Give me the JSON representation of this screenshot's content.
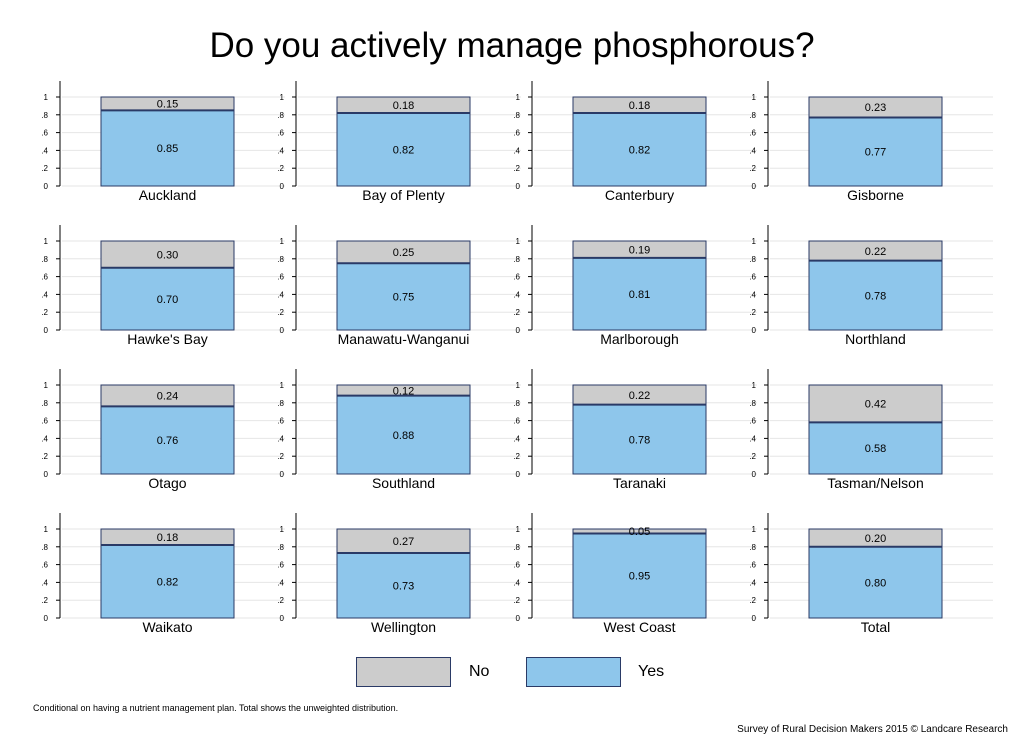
{
  "title": "Do you actively manage phosphorous?",
  "note": "Conditional on having a nutrient management plan. Total shows the unweighted distribution.",
  "source": "Survey of Rural Decision Makers 2015 © Landcare Research",
  "colors": {
    "yes": "#8ec6eb",
    "no": "#cccccc",
    "border": "#2a3a66",
    "grid": "#e6e6e6"
  },
  "legend": [
    {
      "key": "no",
      "label": "No"
    },
    {
      "key": "yes",
      "label": "Yes"
    }
  ],
  "chart_data": {
    "type": "bar",
    "stacked": true,
    "ylim": [
      0,
      1
    ],
    "yticks": [
      "0",
      ".2",
      ".4",
      ".6",
      ".8",
      "1"
    ],
    "grid": true,
    "legend_position": "bottom",
    "panels": [
      {
        "category": "Auckland",
        "yes": 0.85,
        "no": 0.15,
        "yes_label": "0.85",
        "no_label": "0.15"
      },
      {
        "category": "Bay of Plenty",
        "yes": 0.82,
        "no": 0.18,
        "yes_label": "0.82",
        "no_label": "0.18"
      },
      {
        "category": "Canterbury",
        "yes": 0.82,
        "no": 0.18,
        "yes_label": "0.82",
        "no_label": "0.18"
      },
      {
        "category": "Gisborne",
        "yes": 0.77,
        "no": 0.23,
        "yes_label": "0.77",
        "no_label": "0.23"
      },
      {
        "category": "Hawke's Bay",
        "yes": 0.7,
        "no": 0.3,
        "yes_label": "0.70",
        "no_label": "0.30"
      },
      {
        "category": "Manawatu-Wanganui",
        "yes": 0.75,
        "no": 0.25,
        "yes_label": "0.75",
        "no_label": "0.25"
      },
      {
        "category": "Marlborough",
        "yes": 0.81,
        "no": 0.19,
        "yes_label": "0.81",
        "no_label": "0.19"
      },
      {
        "category": "Northland",
        "yes": 0.78,
        "no": 0.22,
        "yes_label": "0.78",
        "no_label": "0.22"
      },
      {
        "category": "Otago",
        "yes": 0.76,
        "no": 0.24,
        "yes_label": "0.76",
        "no_label": "0.24"
      },
      {
        "category": "Southland",
        "yes": 0.88,
        "no": 0.12,
        "yes_label": "0.88",
        "no_label": "0.12"
      },
      {
        "category": "Taranaki",
        "yes": 0.78,
        "no": 0.22,
        "yes_label": "0.78",
        "no_label": "0.22"
      },
      {
        "category": "Tasman/Nelson",
        "yes": 0.58,
        "no": 0.42,
        "yes_label": "0.58",
        "no_label": "0.42"
      },
      {
        "category": "Waikato",
        "yes": 0.82,
        "no": 0.18,
        "yes_label": "0.82",
        "no_label": "0.18"
      },
      {
        "category": "Wellington",
        "yes": 0.73,
        "no": 0.27,
        "yes_label": "0.73",
        "no_label": "0.27"
      },
      {
        "category": "West Coast",
        "yes": 0.95,
        "no": 0.05,
        "yes_label": "0.95",
        "no_label": "0.05"
      },
      {
        "category": "Total",
        "yes": 0.8,
        "no": 0.2,
        "yes_label": "0.80",
        "no_label": "0.20"
      }
    ]
  }
}
